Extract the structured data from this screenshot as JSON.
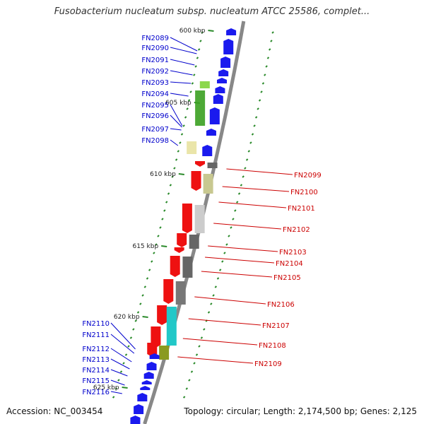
{
  "title": "Fusobacterium nucleatum subsp. nucleatum ATCC 25586, complet...",
  "accession": "Accession: NC_003454",
  "summary": "Topology: circular; Length: 2,174,500 bp; Genes: 2,125",
  "colors": {
    "backbone": "#888888",
    "forward_label": "#0000cc",
    "reverse_label": "#cc0000",
    "tick": "#2a8a2a"
  },
  "ticks": [
    "600 kbp",
    "605 kbp",
    "610 kbp",
    "615 kbp",
    "620 kbp",
    "625 kbp"
  ],
  "forward_genes": [
    "FN2089",
    "FN2090",
    "FN2091",
    "FN2092",
    "FN2093",
    "FN2094",
    "FN2095",
    "FN2096",
    "FN2097",
    "FN2098"
  ],
  "forward_genes_lower": [
    "FN2110",
    "FN2111",
    "FN2112",
    "FN2113",
    "FN2114",
    "FN2115",
    "FN2116"
  ],
  "reverse_genes": [
    "FN2099",
    "FN2100",
    "FN2101",
    "FN2102",
    "FN2103",
    "FN2104",
    "FN2105",
    "FN2106",
    "FN2107",
    "FN2108",
    "FN2109"
  ]
}
